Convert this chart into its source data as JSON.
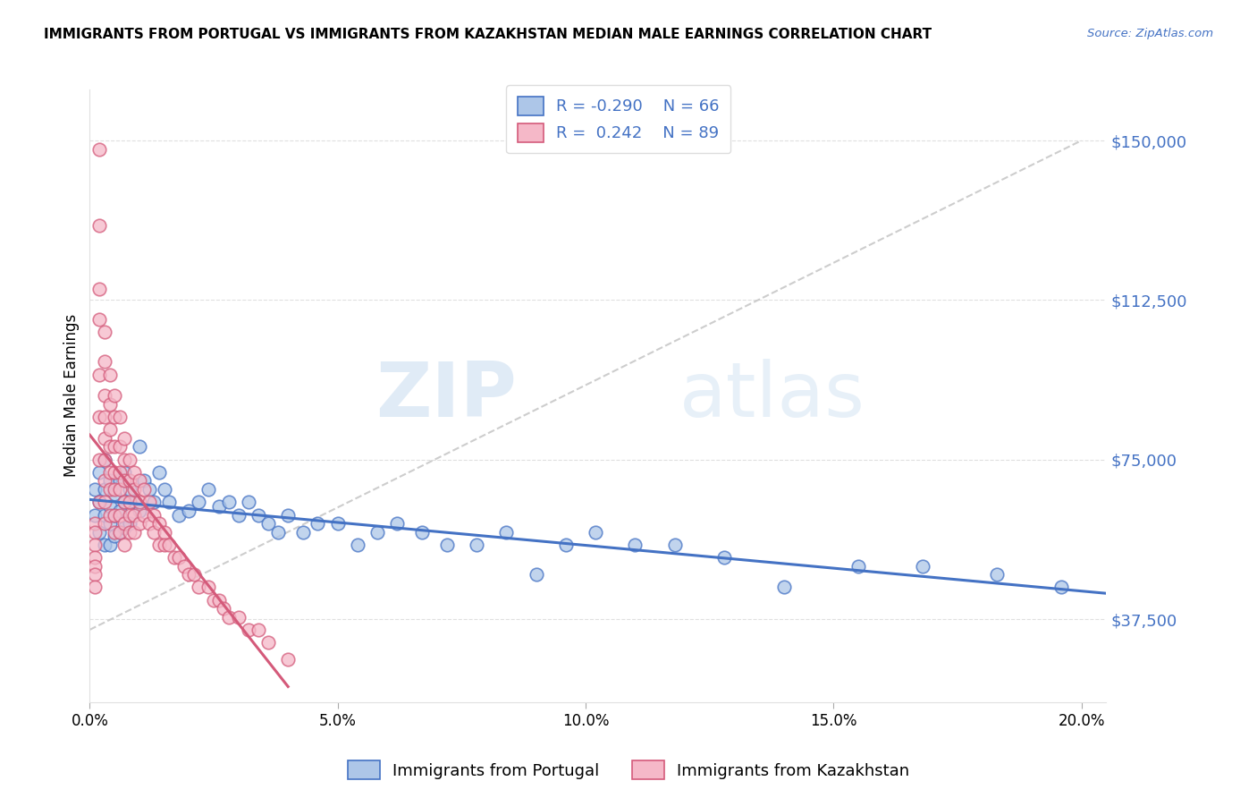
{
  "title": "IMMIGRANTS FROM PORTUGAL VS IMMIGRANTS FROM KAZAKHSTAN MEDIAN MALE EARNINGS CORRELATION CHART",
  "source": "Source: ZipAtlas.com",
  "ylabel": "Median Male Earnings",
  "watermark_zip": "ZIP",
  "watermark_atlas": "atlas",
  "portugal_color": "#adc6e8",
  "portugal_line_color": "#4472c4",
  "kazakhstan_color": "#f5b8c8",
  "kazakhstan_line_color": "#d45a7a",
  "diagonal_color": "#c8c8c8",
  "R_portugal": -0.29,
  "N_portugal": 66,
  "R_kazakhstan": 0.242,
  "N_kazakhstan": 89,
  "legend_label_portugal": "Immigrants from Portugal",
  "legend_label_kazakhstan": "Immigrants from Kazakhstan",
  "xlim": [
    0.0,
    0.205
  ],
  "ylim": [
    18000,
    162000
  ],
  "yticks": [
    37500,
    75000,
    112500,
    150000
  ],
  "ytick_labels": [
    "$37,500",
    "$75,000",
    "$112,500",
    "$150,000"
  ],
  "xticks": [
    0.0,
    0.05,
    0.1,
    0.15,
    0.2
  ],
  "xtick_labels": [
    "0.0%",
    "5.0%",
    "10.0%",
    "15.0%",
    "20.0%"
  ],
  "portugal_x": [
    0.001,
    0.001,
    0.002,
    0.002,
    0.002,
    0.003,
    0.003,
    0.003,
    0.003,
    0.004,
    0.004,
    0.004,
    0.004,
    0.005,
    0.005,
    0.005,
    0.006,
    0.006,
    0.006,
    0.007,
    0.007,
    0.007,
    0.008,
    0.008,
    0.009,
    0.01,
    0.01,
    0.011,
    0.012,
    0.013,
    0.014,
    0.015,
    0.016,
    0.018,
    0.02,
    0.022,
    0.024,
    0.026,
    0.028,
    0.03,
    0.032,
    0.034,
    0.036,
    0.038,
    0.04,
    0.043,
    0.046,
    0.05,
    0.054,
    0.058,
    0.062,
    0.067,
    0.072,
    0.078,
    0.084,
    0.09,
    0.096,
    0.102,
    0.11,
    0.118,
    0.128,
    0.14,
    0.155,
    0.168,
    0.183,
    0.196
  ],
  "portugal_y": [
    68000,
    62000,
    72000,
    65000,
    58000,
    75000,
    68000,
    62000,
    55000,
    70000,
    64000,
    60000,
    55000,
    67000,
    62000,
    57000,
    70000,
    63000,
    58000,
    72000,
    65000,
    59000,
    68000,
    60000,
    65000,
    78000,
    63000,
    70000,
    68000,
    65000,
    72000,
    68000,
    65000,
    62000,
    63000,
    65000,
    68000,
    64000,
    65000,
    62000,
    65000,
    62000,
    60000,
    58000,
    62000,
    58000,
    60000,
    60000,
    55000,
    58000,
    60000,
    58000,
    55000,
    55000,
    58000,
    48000,
    55000,
    58000,
    55000,
    55000,
    52000,
    45000,
    50000,
    50000,
    48000,
    45000
  ],
  "kazakhstan_x": [
    0.001,
    0.001,
    0.001,
    0.001,
    0.001,
    0.001,
    0.001,
    0.002,
    0.002,
    0.002,
    0.002,
    0.002,
    0.002,
    0.002,
    0.002,
    0.003,
    0.003,
    0.003,
    0.003,
    0.003,
    0.003,
    0.003,
    0.003,
    0.003,
    0.004,
    0.004,
    0.004,
    0.004,
    0.004,
    0.004,
    0.004,
    0.005,
    0.005,
    0.005,
    0.005,
    0.005,
    0.005,
    0.005,
    0.006,
    0.006,
    0.006,
    0.006,
    0.006,
    0.006,
    0.007,
    0.007,
    0.007,
    0.007,
    0.007,
    0.007,
    0.008,
    0.008,
    0.008,
    0.008,
    0.008,
    0.009,
    0.009,
    0.009,
    0.009,
    0.01,
    0.01,
    0.01,
    0.011,
    0.011,
    0.012,
    0.012,
    0.013,
    0.013,
    0.014,
    0.014,
    0.015,
    0.015,
    0.016,
    0.017,
    0.018,
    0.019,
    0.02,
    0.021,
    0.022,
    0.024,
    0.025,
    0.026,
    0.027,
    0.028,
    0.03,
    0.032,
    0.034,
    0.036,
    0.04
  ],
  "kazakhstan_y": [
    60000,
    58000,
    55000,
    52000,
    50000,
    48000,
    45000,
    148000,
    130000,
    115000,
    108000,
    95000,
    85000,
    75000,
    65000,
    105000,
    98000,
    90000,
    85000,
    80000,
    75000,
    70000,
    65000,
    60000,
    95000,
    88000,
    82000,
    78000,
    72000,
    68000,
    62000,
    90000,
    85000,
    78000,
    72000,
    68000,
    62000,
    58000,
    85000,
    78000,
    72000,
    68000,
    62000,
    58000,
    80000,
    75000,
    70000,
    65000,
    60000,
    55000,
    75000,
    70000,
    65000,
    62000,
    58000,
    72000,
    68000,
    62000,
    58000,
    70000,
    65000,
    60000,
    68000,
    62000,
    65000,
    60000,
    62000,
    58000,
    60000,
    55000,
    58000,
    55000,
    55000,
    52000,
    52000,
    50000,
    48000,
    48000,
    45000,
    45000,
    42000,
    42000,
    40000,
    38000,
    38000,
    35000,
    35000,
    32000,
    28000
  ]
}
